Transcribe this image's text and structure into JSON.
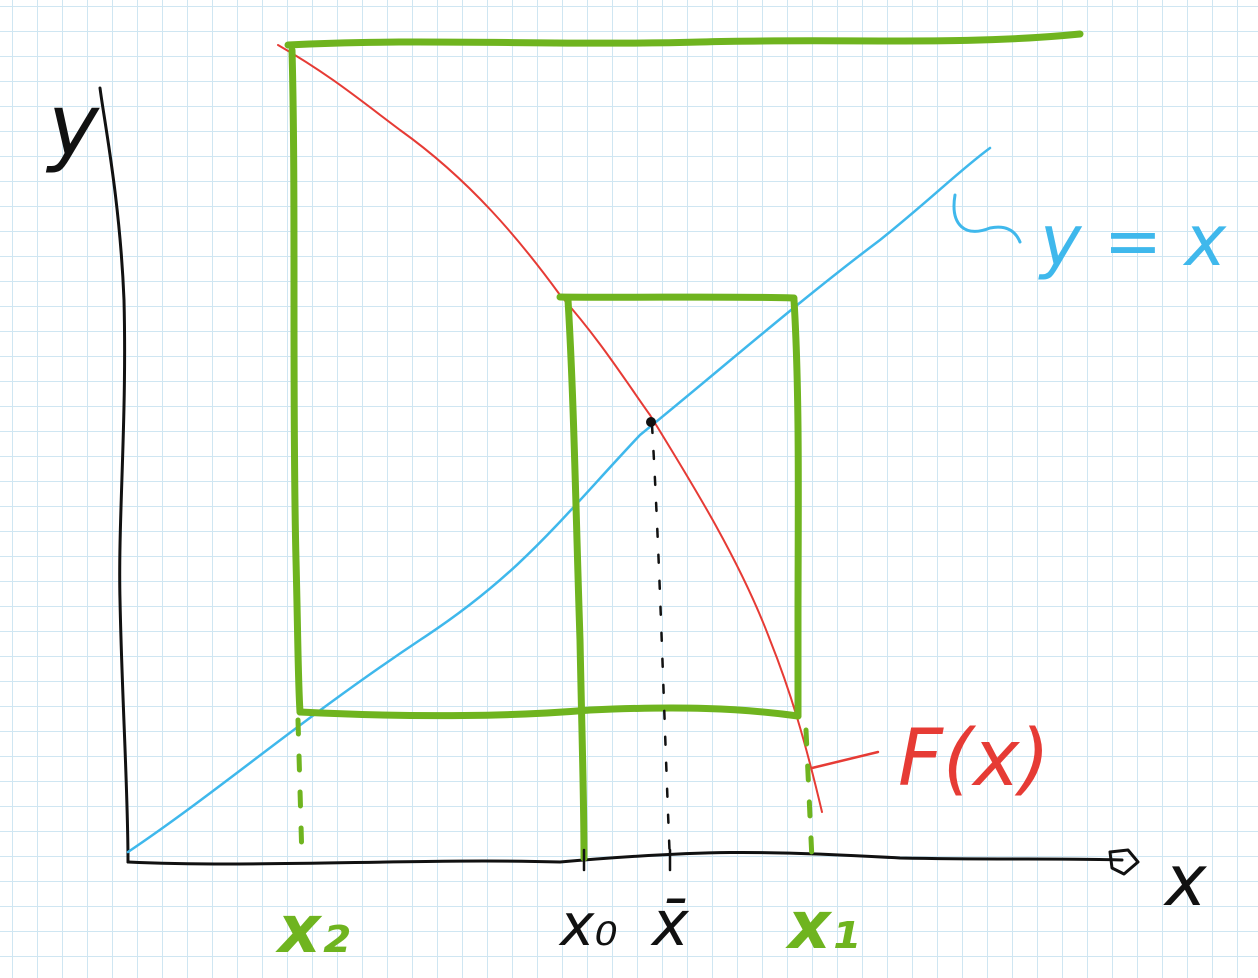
{
  "labels": {
    "y_axis": "y",
    "x_axis": "x",
    "identity_line": "y = x",
    "function": "F(x)",
    "x0": "x₀",
    "x1": "x₁",
    "x2": "x₂",
    "x_bar": "x̄"
  },
  "colors": {
    "axes": "#111111",
    "identity_line": "#3fb8ec",
    "function_curve": "#e63b35",
    "iteration": "#6fb41f",
    "grid": "#cfe6f2"
  }
}
